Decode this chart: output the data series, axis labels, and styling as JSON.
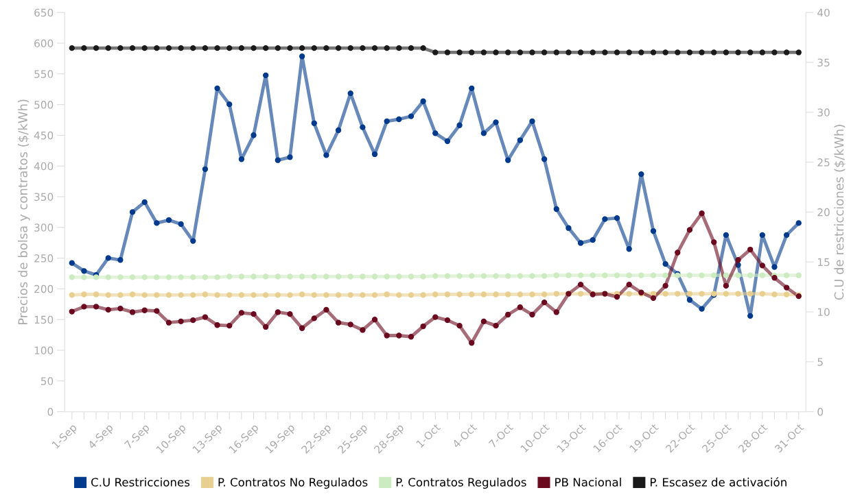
{
  "chart_data": {
    "type": "line",
    "ylabel": "Precios de bolsa y contratos ($/kWh)",
    "y2label": "C.U de restricciones ($/kWh)",
    "categories": [
      "1-Sep",
      null,
      null,
      "4-Sep",
      null,
      null,
      "7-Sep",
      null,
      null,
      "10-Sep",
      null,
      null,
      "13-Sep",
      null,
      null,
      "16-Sep",
      null,
      null,
      "19-Sep",
      null,
      null,
      "22-Sep",
      null,
      null,
      "25-Sep",
      null,
      null,
      "28-Sep",
      null,
      null,
      "1-Oct",
      null,
      null,
      "4-Oct",
      null,
      null,
      "7-Oct",
      null,
      null,
      "10-Oct",
      null,
      null,
      "13-Oct",
      null,
      null,
      "16-Oct",
      null,
      null,
      "19-Oct",
      null,
      null,
      "22-Oct",
      null,
      null,
      "25-Oct",
      null,
      null,
      "28-Oct",
      null,
      null,
      "31-Oct"
    ],
    "series": [
      {
        "name": "C.U Restricciones",
        "color": "#003a8c",
        "axis": "y2",
        "values": [
          14.9,
          14.1,
          13.7,
          15.4,
          15.2,
          20.0,
          21.0,
          18.9,
          19.2,
          18.8,
          17.1,
          24.3,
          32.4,
          30.8,
          25.3,
          27.7,
          33.7,
          25.2,
          25.5,
          35.6,
          28.9,
          25.7,
          28.2,
          31.9,
          28.5,
          25.8,
          29.1,
          29.3,
          29.6,
          31.1,
          27.9,
          27.1,
          28.7,
          32.4,
          27.9,
          29.0,
          25.2,
          27.2,
          29.1,
          25.3,
          20.3,
          18.4,
          16.9,
          17.2,
          19.3,
          19.4,
          16.3,
          23.8,
          18.1,
          14.8,
          13.8,
          11.2,
          10.3,
          11.7,
          17.7,
          14.7,
          9.6,
          17.7,
          14.5,
          17.7,
          18.9
        ]
      },
      {
        "name": "P. Contratos No Regulados",
        "color": "#e8cf8f",
        "values": [
          190,
          191,
          191,
          190,
          190,
          191,
          190,
          190,
          190,
          190,
          190,
          191,
          190,
          190,
          190,
          190,
          190,
          190,
          190,
          191,
          190,
          190,
          190,
          190,
          190,
          190,
          191,
          190,
          190,
          190,
          191,
          191,
          191,
          191,
          191,
          191,
          191,
          191,
          191,
          191,
          192,
          192,
          192,
          192,
          192,
          192,
          192,
          192,
          192,
          192,
          192,
          192,
          192,
          192,
          192,
          192,
          192,
          192,
          191,
          191,
          190
        ]
      },
      {
        "name": "P. Contratos Regulados",
        "color": "#cdebc0",
        "values": [
          219,
          219,
          219,
          219,
          219,
          219,
          219,
          219,
          219,
          219,
          219,
          219,
          219,
          220,
          220,
          220,
          220,
          220,
          220,
          220,
          220,
          220,
          220,
          220,
          220,
          220,
          220,
          220,
          220,
          220,
          221,
          221,
          221,
          221,
          221,
          221,
          221,
          221,
          221,
          221,
          222,
          222,
          222,
          222,
          222,
          222,
          222,
          222,
          222,
          222,
          222,
          222,
          222,
          222,
          222,
          222,
          222,
          222,
          222,
          222,
          222
        ]
      },
      {
        "name": "PB Nacional",
        "color": "#6b0a1e",
        "values": [
          163,
          171,
          171,
          166,
          168,
          162,
          165,
          164,
          145,
          147,
          149,
          154,
          141,
          140,
          161,
          159,
          138,
          162,
          159,
          136,
          152,
          166,
          145,
          142,
          133,
          150,
          124,
          124,
          122,
          139,
          154,
          149,
          140,
          112,
          147,
          140,
          158,
          170,
          158,
          178,
          162,
          192,
          207,
          191,
          192,
          187,
          207,
          194,
          185,
          205,
          259,
          296,
          323,
          276,
          205,
          247,
          264,
          238,
          218,
          202,
          188
        ]
      },
      {
        "name": "P. Escasez de activación",
        "color": "#1a1a1a",
        "values": [
          592,
          592,
          592,
          592,
          592,
          592,
          592,
          592,
          592,
          592,
          592,
          592,
          592,
          592,
          592,
          592,
          592,
          592,
          592,
          592,
          592,
          592,
          592,
          592,
          592,
          592,
          592,
          592,
          592,
          592,
          585,
          585,
          585,
          585,
          585,
          585,
          585,
          585,
          585,
          585,
          585,
          585,
          585,
          585,
          585,
          585,
          585,
          585,
          585,
          585,
          585,
          585,
          585,
          585,
          585,
          585,
          585,
          585,
          585,
          585,
          585
        ]
      }
    ],
    "ylim": [
      0,
      650
    ],
    "yticks": [
      0,
      50,
      100,
      150,
      200,
      250,
      300,
      350,
      400,
      450,
      500,
      550,
      600,
      650
    ],
    "y2lim": [
      0,
      40
    ],
    "y2ticks": [
      0,
      5,
      10,
      15,
      20,
      25,
      30,
      35,
      40
    ],
    "marker": "circle",
    "line_style": "solid",
    "grid": false,
    "legend": "bottom"
  }
}
